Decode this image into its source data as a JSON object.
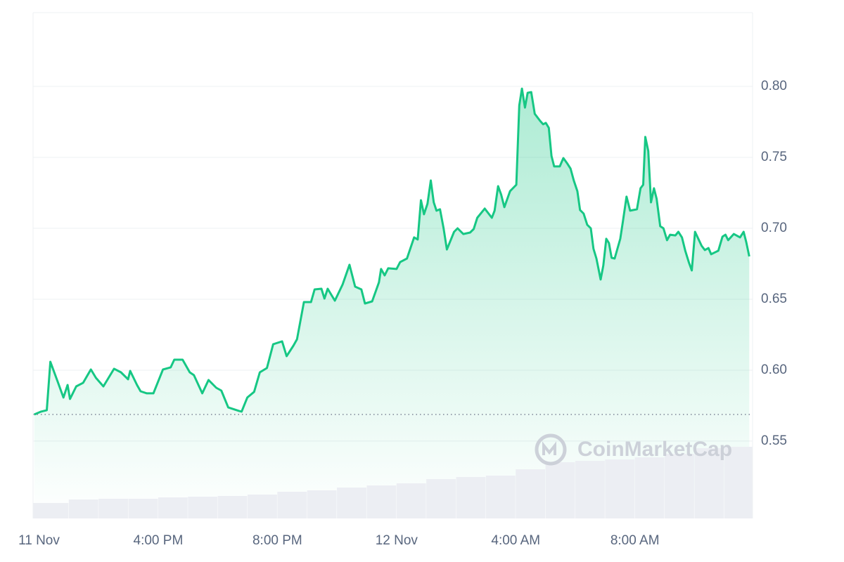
{
  "chart_data": {
    "type": "line",
    "watermark": "CoinMarketCap",
    "x": [
      -0.16,
      0.07,
      0.26,
      0.38,
      0.64,
      0.82,
      0.96,
      1.04,
      1.25,
      1.48,
      1.74,
      1.91,
      2.16,
      2.52,
      2.75,
      2.99,
      3.06,
      3.29,
      3.41,
      3.62,
      3.84,
      4.16,
      4.42,
      4.54,
      4.82,
      5.06,
      5.2,
      5.48,
      5.69,
      5.95,
      6.12,
      6.35,
      6.71,
      6.8,
      6.99,
      7.22,
      7.41,
      7.65,
      7.86,
      8.16,
      8.31,
      8.54,
      8.66,
      8.89,
      9.13,
      9.25,
      9.48,
      9.58,
      9.69,
      9.93,
      10.19,
      10.42,
      10.61,
      10.82,
      10.94,
      11.18,
      11.41,
      11.48,
      11.6,
      11.72,
      12.0,
      12.12,
      12.35,
      12.59,
      12.71,
      12.82,
      12.92,
      13.04,
      13.15,
      13.25,
      13.34,
      13.46,
      13.58,
      13.69,
      13.93,
      14.05,
      14.24,
      14.47,
      14.59,
      14.71,
      14.96,
      15.2,
      15.29,
      15.41,
      15.51,
      15.62,
      15.81,
      16.02,
      16.12,
      16.21,
      16.31,
      16.4,
      16.52,
      16.64,
      16.82,
      16.92,
      17.01,
      17.11,
      17.2,
      17.29,
      17.48,
      17.6,
      17.72,
      17.84,
      17.95,
      18.07,
      18.16,
      18.28,
      18.4,
      18.52,
      18.61,
      18.71,
      18.85,
      18.94,
      19.04,
      19.13,
      19.22,
      19.32,
      19.51,
      19.6,
      19.72,
      19.84,
      20.07,
      20.19,
      20.28,
      20.35,
      20.45,
      20.54,
      20.64,
      20.73,
      20.85,
      20.96,
      21.08,
      21.18,
      21.36,
      21.46,
      21.58,
      21.69,
      21.81,
      21.91,
      22.02,
      22.24,
      22.35,
      22.47,
      22.56,
      22.8,
      22.94,
      23.04,
      23.13,
      23.32,
      23.53,
      23.65,
      23.74,
      23.84
    ],
    "series": [
      {
        "color": "#16c784",
        "values": [
          0.5688,
          0.5708,
          0.5718,
          0.6059,
          0.5911,
          0.5807,
          0.5896,
          0.5797,
          0.5886,
          0.5911,
          0.6005,
          0.5946,
          0.5886,
          0.601,
          0.5985,
          0.5936,
          0.5995,
          0.5896,
          0.5851,
          0.5837,
          0.5837,
          0.6005,
          0.602,
          0.6074,
          0.6074,
          0.5985,
          0.5965,
          0.5837,
          0.5931,
          0.5876,
          0.5856,
          0.5738,
          0.5713,
          0.5708,
          0.5807,
          0.5847,
          0.5985,
          0.6015,
          0.6183,
          0.6203,
          0.6099,
          0.6173,
          0.6218,
          0.648,
          0.648,
          0.6569,
          0.6574,
          0.6505,
          0.6574,
          0.649,
          0.6604,
          0.6743,
          0.6589,
          0.6569,
          0.647,
          0.6485,
          0.6619,
          0.6713,
          0.6668,
          0.6718,
          0.6713,
          0.6762,
          0.6787,
          0.6936,
          0.6921,
          0.7198,
          0.7099,
          0.7173,
          0.7337,
          0.7183,
          0.7124,
          0.7134,
          0.7,
          0.6851,
          0.6975,
          0.7,
          0.696,
          0.697,
          0.6995,
          0.7074,
          0.7139,
          0.7074,
          0.7124,
          0.7297,
          0.7238,
          0.7149,
          0.7262,
          0.7307,
          0.7866,
          0.7985,
          0.7851,
          0.7955,
          0.796,
          0.7807,
          0.7757,
          0.7733,
          0.7743,
          0.7708,
          0.751,
          0.7436,
          0.7436,
          0.7495,
          0.746,
          0.7421,
          0.7337,
          0.7262,
          0.7129,
          0.7104,
          0.7025,
          0.7,
          0.6856,
          0.6787,
          0.6639,
          0.6738,
          0.6926,
          0.6896,
          0.6792,
          0.6787,
          0.6926,
          0.705,
          0.7223,
          0.7124,
          0.7134,
          0.7282,
          0.7307,
          0.7644,
          0.7545,
          0.7183,
          0.7282,
          0.7208,
          0.7015,
          0.7,
          0.6916,
          0.6955,
          0.695,
          0.6975,
          0.6936,
          0.6842,
          0.6762,
          0.6703,
          0.6975,
          0.6876,
          0.6847,
          0.6861,
          0.6817,
          0.6842,
          0.6941,
          0.6955,
          0.6916,
          0.696,
          0.6936,
          0.6975,
          0.6901,
          0.6802
        ]
      }
    ],
    "volume": {
      "color": "#eceef3",
      "x": [
        0,
        1,
        2,
        3,
        4,
        5,
        6,
        7,
        8,
        9,
        10,
        11,
        12,
        13,
        14,
        15,
        16,
        17,
        18,
        19,
        20,
        21,
        22,
        23
      ],
      "values": [
        22,
        27,
        28,
        28,
        30,
        31,
        32,
        34,
        38,
        40,
        44,
        47,
        50,
        56,
        59,
        61,
        70,
        80,
        82,
        84,
        87,
        92,
        100,
        102
      ]
    },
    "xlim": [
      -0.2,
      23.95
    ],
    "xticks": [
      {
        "value": 0,
        "label": "11 Nov"
      },
      {
        "value": 4,
        "label": "4:00 PM"
      },
      {
        "value": 8,
        "label": "8:00 PM"
      },
      {
        "value": 12,
        "label": "12 Nov"
      },
      {
        "value": 16,
        "label": "4:00 AM"
      },
      {
        "value": 20,
        "label": "8:00 AM"
      }
    ],
    "ylim": [
      0.4955,
      0.852
    ],
    "yticks": [
      0.55,
      {
        "value": 0.6,
        "label": "0.60"
      },
      0.65,
      {
        "value": 0.7,
        "label": "0.70"
      },
      0.75,
      {
        "value": 0.8,
        "label": "0.80"
      }
    ],
    "grid": true
  }
}
